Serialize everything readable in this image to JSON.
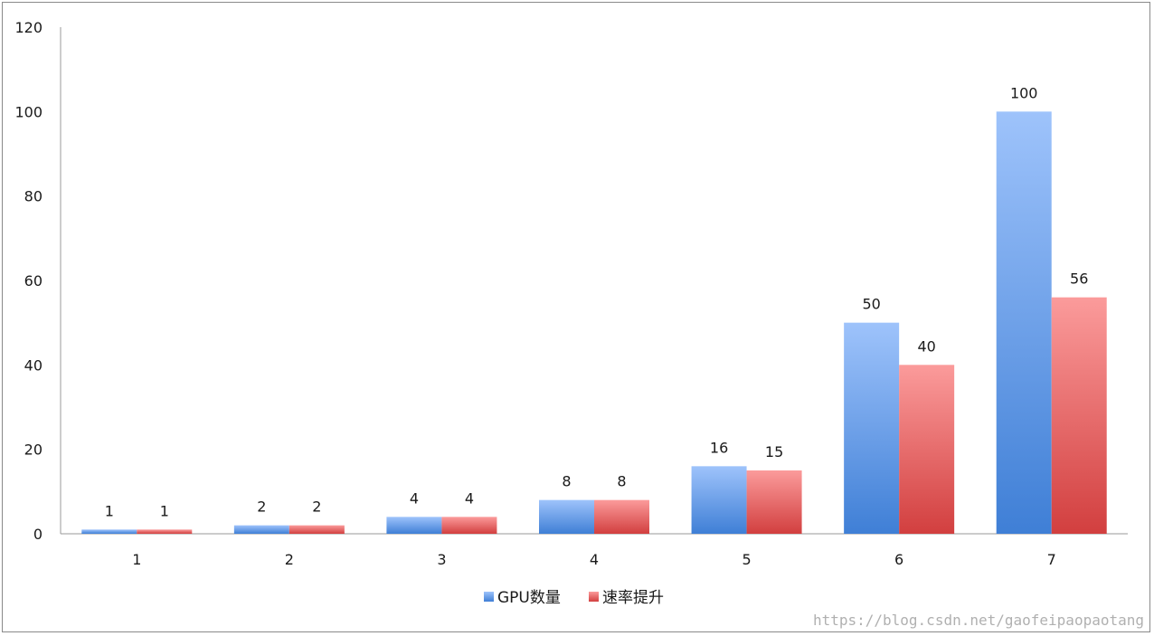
{
  "chart_data": {
    "type": "bar",
    "categories": [
      "1",
      "2",
      "3",
      "4",
      "5",
      "6",
      "7"
    ],
    "series": [
      {
        "name": "GPU数量",
        "values": [
          1,
          2,
          4,
          8,
          16,
          50,
          100
        ],
        "color_top": "#9ec3fb",
        "color_bottom": "#3f7fd6"
      },
      {
        "name": "速率提升",
        "values": [
          1,
          2,
          4,
          8,
          15,
          40,
          56
        ],
        "color_top": "#fb9b9b",
        "color_bottom": "#d23f3f"
      }
    ],
    "title": "",
    "xlabel": "",
    "ylabel": "",
    "ylim": [
      0,
      120
    ],
    "yticks": [
      0,
      20,
      40,
      60,
      80,
      100,
      120
    ],
    "grid": false,
    "legend": "bottom-center",
    "data_labels": true
  },
  "watermark": "https://blog.csdn.net/gaofeipaopaotang"
}
